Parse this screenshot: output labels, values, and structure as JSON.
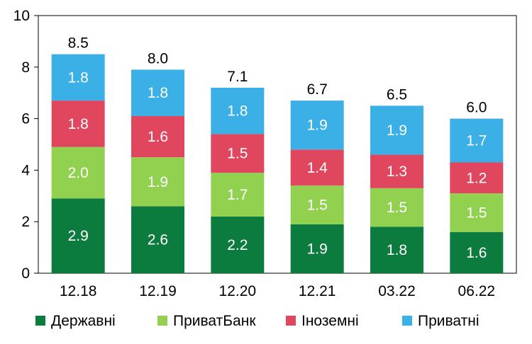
{
  "chart_data": {
    "type": "bar",
    "stacked": true,
    "categories": [
      "12.18",
      "12.19",
      "12.20",
      "12.21",
      "03.22",
      "06.22"
    ],
    "series": [
      {
        "name": "Державні",
        "color": "#0c7b3e",
        "values": [
          2.9,
          2.6,
          2.2,
          1.9,
          1.8,
          1.6
        ]
      },
      {
        "name": "ПриватБанк",
        "color": "#92d050",
        "values": [
          2.0,
          1.9,
          1.7,
          1.5,
          1.5,
          1.5
        ]
      },
      {
        "name": "Іноземні",
        "color": "#e0475f",
        "values": [
          1.8,
          1.6,
          1.5,
          1.4,
          1.3,
          1.2
        ]
      },
      {
        "name": "Приватні",
        "color": "#3ab0e6",
        "values": [
          1.8,
          1.8,
          1.8,
          1.9,
          1.9,
          1.7
        ]
      }
    ],
    "totals": [
      8.5,
      8.0,
      7.1,
      6.7,
      6.5,
      6.0
    ],
    "ylim": [
      0,
      10
    ],
    "yticks": [
      0,
      2,
      4,
      6,
      8,
      10
    ],
    "grid": false,
    "legend_position": "bottom"
  }
}
